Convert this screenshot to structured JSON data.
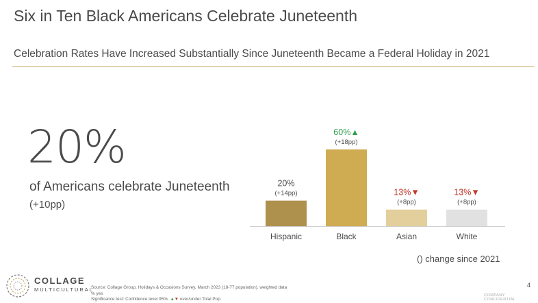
{
  "header": {
    "title": "Six in Ten Black Americans Celebrate Juneteenth",
    "subtitle": "Celebration Rates Have Increased Substantially Since Juneteenth Became a Federal Holiday in 2021"
  },
  "highlight": {
    "value": "20%",
    "label": "of Americans celebrate Juneteenth",
    "change": "(+10pp)"
  },
  "chart_data": {
    "type": "bar",
    "title": "",
    "xlabel": "",
    "ylabel": "",
    "categories": [
      "Hispanic",
      "Black",
      "Asian",
      "White"
    ],
    "values": [
      20,
      60,
      13,
      13
    ],
    "value_labels": [
      "20%",
      "60%",
      "13%",
      "13%"
    ],
    "changes": [
      "(+14pp)",
      "(+18pp)",
      "(+8pp)",
      "(+8pp)"
    ],
    "significance": [
      "none",
      "up",
      "down",
      "down"
    ],
    "colors": [
      "#ae914d",
      "#cfab52",
      "#e3cf9c",
      "#e1e1e1"
    ],
    "label_colors": [
      "#4a4a4a",
      "#2e9e4f",
      "#c0392b",
      "#c0392b"
    ],
    "ylim": [
      0,
      60
    ],
    "grid": false,
    "legend": "none"
  },
  "footnote": "() change since 2021",
  "logo": {
    "line1": "COLLAGE",
    "line2": "MULTICULTURAL"
  },
  "source": {
    "line1": "Source: Collage Group, Holidays & Occasions Survey, March 2023 (18-77 population), weighted data",
    "line2": "% yes",
    "line3_prefix": "Significance test: Confidence level 95%.",
    "up_symbol": "▲",
    "down_symbol": "▼",
    "line3_suffix": "over/under Total Pop."
  },
  "page_number": "4",
  "confidential": "COMPANY CONFIDENTIAL"
}
